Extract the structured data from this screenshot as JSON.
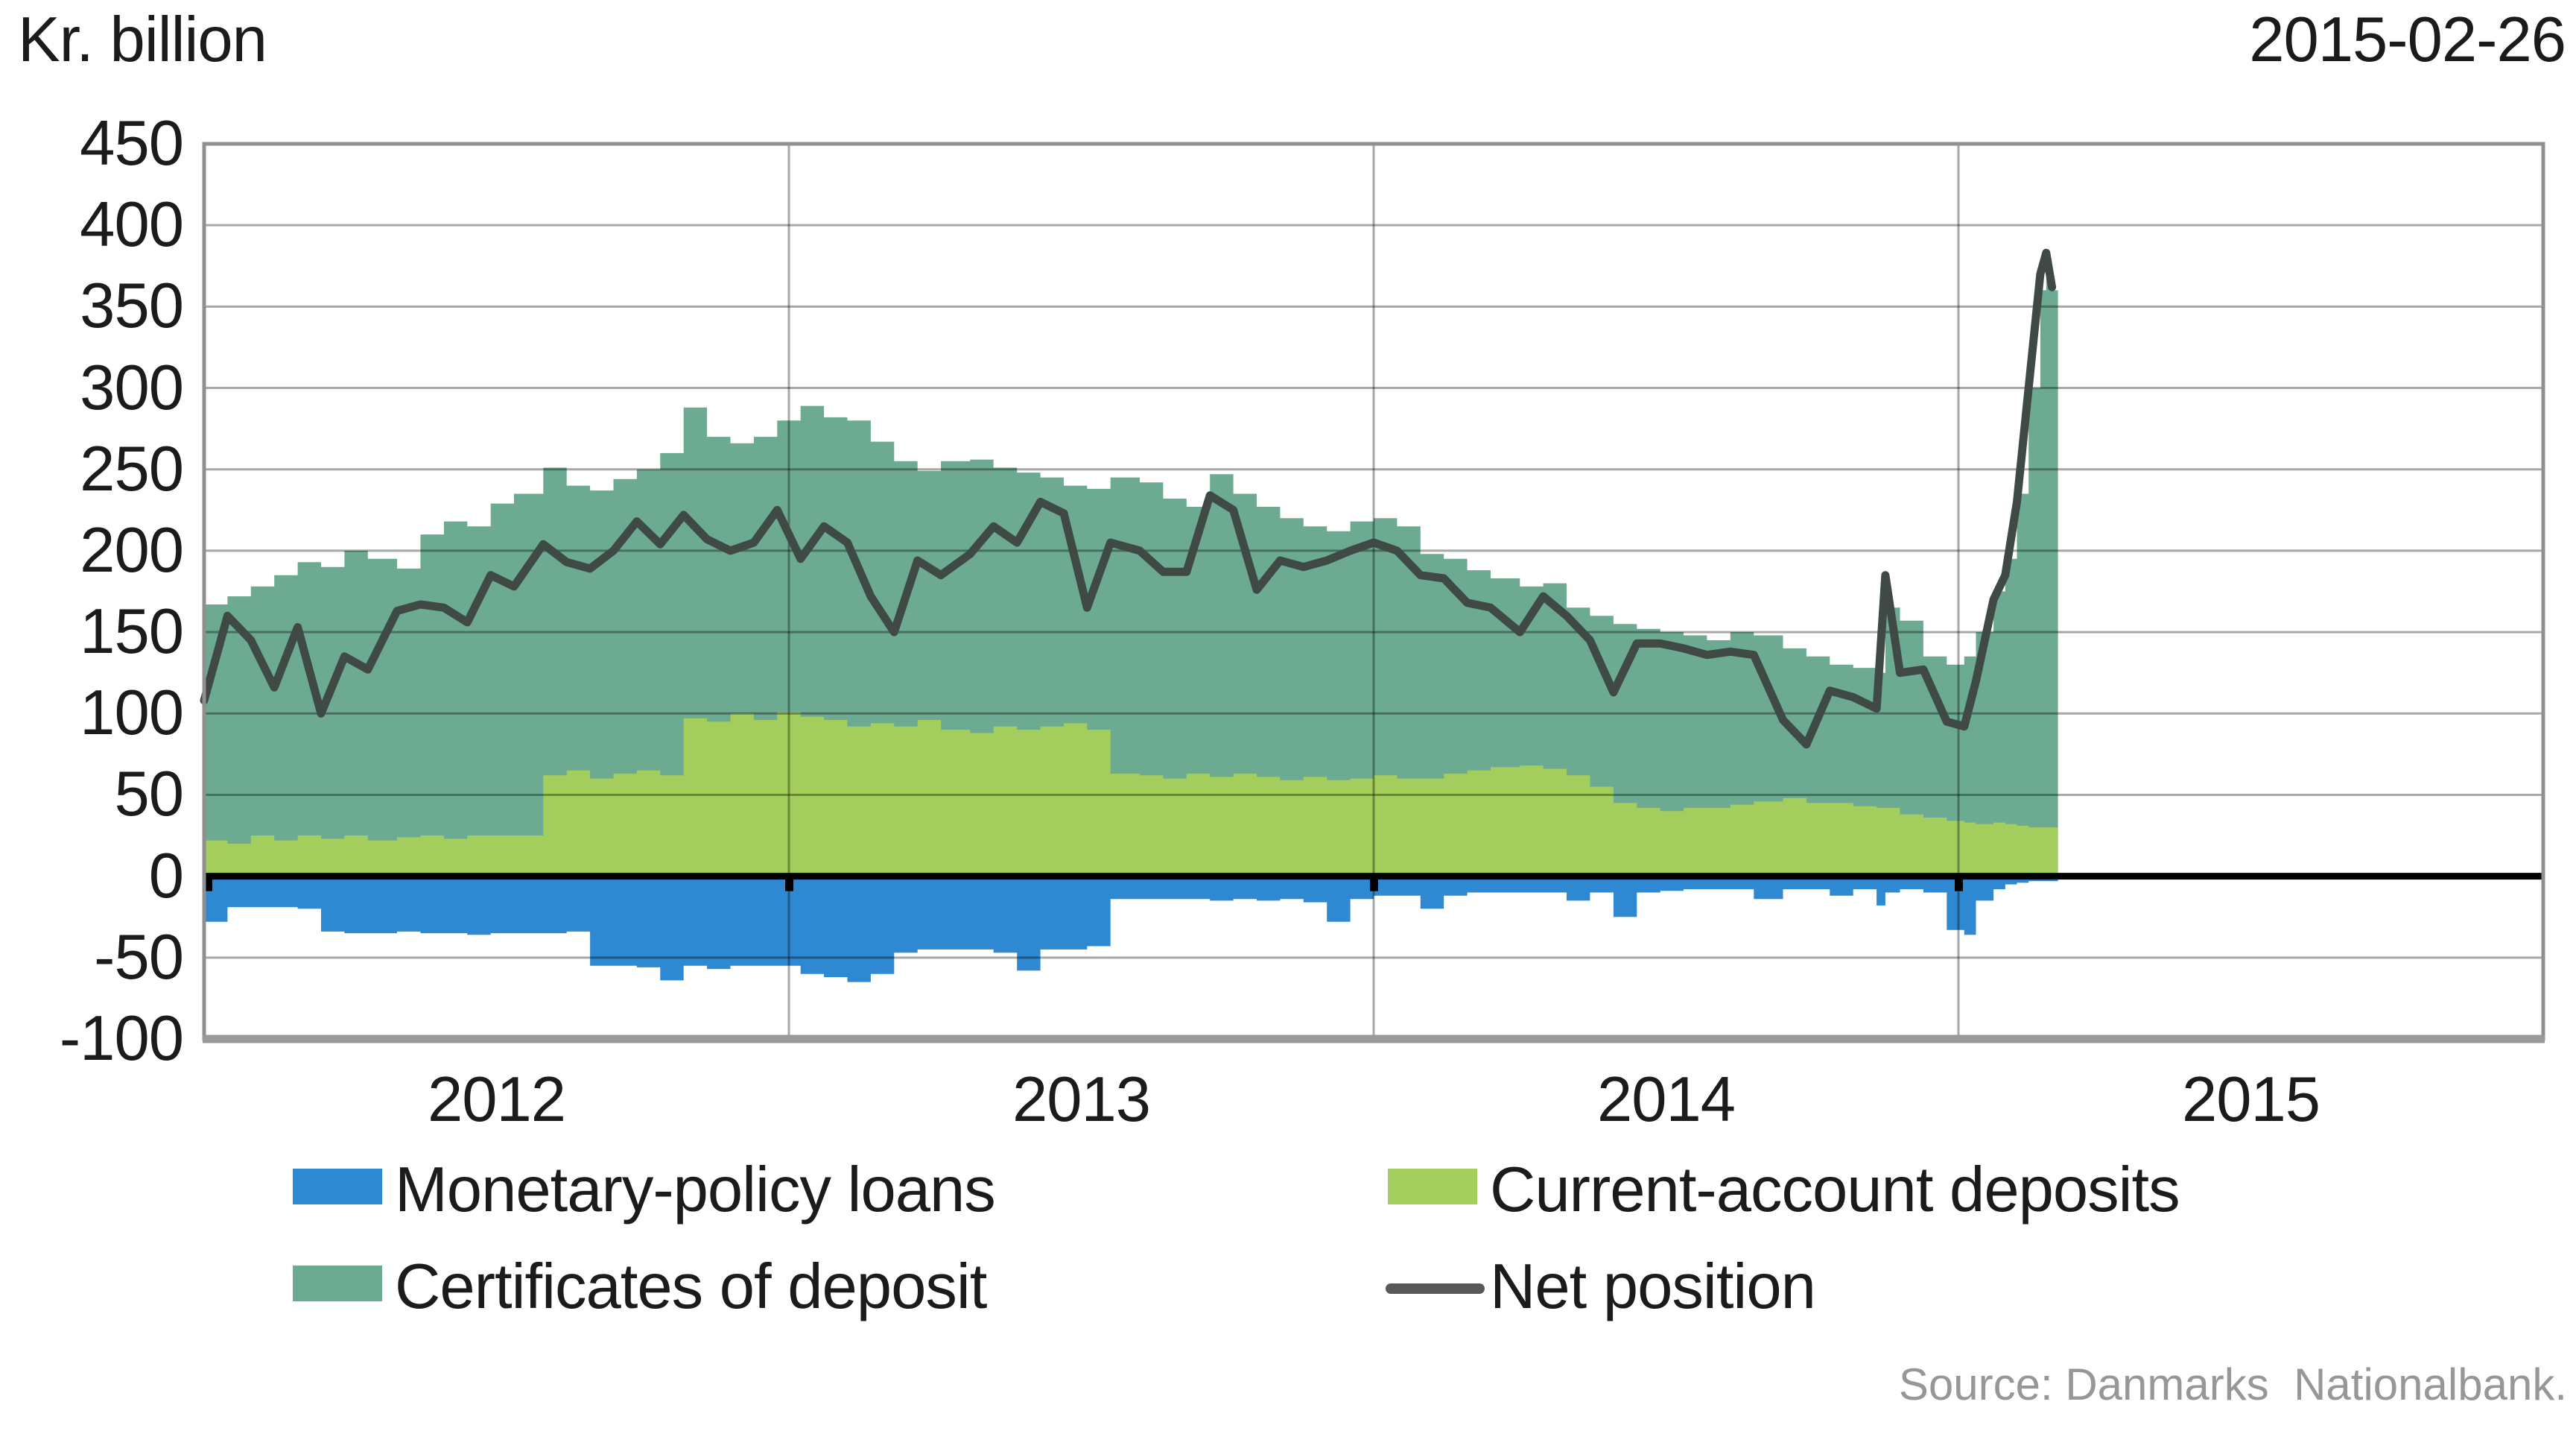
{
  "header": {
    "unit_label": "Kr. billion",
    "date": "2015-02-26"
  },
  "source": "Source: Danmarks  Nationalbank.",
  "y_axis": {
    "ticks": [
      450,
      400,
      350,
      300,
      250,
      200,
      150,
      100,
      50,
      0,
      -50,
      -100
    ]
  },
  "x_axis": {
    "labels": [
      "2012",
      "2013",
      "2014",
      "2015"
    ],
    "label_positions": [
      2012.5,
      2013.5,
      2014.5,
      2015.5
    ]
  },
  "legend": {
    "position": "below",
    "items": [
      {
        "label": "Monetary-policy loans",
        "swatch_color": "#2F88D2",
        "swatch_type": "rect"
      },
      {
        "label": "Current-account deposits",
        "swatch_color": "#A3CD5C",
        "swatch_type": "rect"
      },
      {
        "label": "Certificates of deposit",
        "swatch_color": "#6CAA91",
        "swatch_type": "rect"
      },
      {
        "label": "Net position",
        "swatch_color": "#58595B",
        "swatch_type": "line"
      }
    ]
  },
  "colors": {
    "background": "#FFFFFF",
    "monetary_policy_loans": "#2F88D2",
    "current_account_deposits": "#A3CD5C",
    "certificates_of_deposit": "#6CAA91",
    "net_position_line": "#3F4A47",
    "net_position_legend": "#58595B",
    "zero_line": "#000000",
    "gridline_rgba": "rgba(0,0,0,0.34)",
    "plot_border": "#8F8F8F",
    "text": "#1b1b1b",
    "source_text": "#979797"
  },
  "chart_data": {
    "type": "area",
    "title": "",
    "ylabel": "Kr. billion",
    "xlabel": "",
    "xlim": [
      2012,
      2016
    ],
    "ylim": [
      -100,
      450
    ],
    "y_tick_step": 50,
    "grid": true,
    "x_gridlines_years": [
      2013,
      2014,
      2015
    ],
    "zero_axis_tick_years": [
      2012,
      2013,
      2014,
      2015
    ],
    "x": [
      2012.0,
      2012.04,
      2012.08,
      2012.12,
      2012.16,
      2012.2,
      2012.24,
      2012.28,
      2012.33,
      2012.37,
      2012.41,
      2012.45,
      2012.49,
      2012.53,
      2012.58,
      2012.62,
      2012.66,
      2012.7,
      2012.74,
      2012.78,
      2012.82,
      2012.86,
      2012.9,
      2012.94,
      2012.98,
      2013.02,
      2013.06,
      2013.1,
      2013.14,
      2013.18,
      2013.22,
      2013.26,
      2013.31,
      2013.35,
      2013.39,
      2013.43,
      2013.47,
      2013.51,
      2013.55,
      2013.6,
      2013.64,
      2013.68,
      2013.72,
      2013.76,
      2013.8,
      2013.84,
      2013.88,
      2013.92,
      2013.96,
      2014.0,
      2014.04,
      2014.08,
      2014.12,
      2014.16,
      2014.2,
      2014.25,
      2014.29,
      2014.33,
      2014.37,
      2014.41,
      2014.45,
      2014.49,
      2014.53,
      2014.57,
      2014.61,
      2014.65,
      2014.7,
      2014.74,
      2014.78,
      2014.82,
      2014.86,
      2014.875,
      2014.9,
      2014.94,
      2014.98,
      2015.01,
      2015.03,
      2015.06,
      2015.08,
      2015.1,
      2015.12,
      2015.14,
      2015.15,
      2015.16
    ],
    "series": [
      {
        "name": "Monetary-policy loans",
        "type": "area",
        "stack": "none",
        "color": "#2F88D2",
        "values": [
          -28,
          -19,
          -19,
          -19,
          -20,
          -34,
          -35,
          -35,
          -34,
          -35,
          -35,
          -36,
          -35,
          -35,
          -35,
          -34,
          -55,
          -55,
          -56,
          -64,
          -55,
          -57,
          -55,
          -55,
          -55,
          -60,
          -62,
          -65,
          -60,
          -47,
          -45,
          -45,
          -45,
          -47,
          -58,
          -45,
          -45,
          -43,
          -14,
          -14,
          -14,
          -14,
          -15,
          -14,
          -15,
          -14,
          -16,
          -28,
          -14,
          -12,
          -12,
          -20,
          -12,
          -10,
          -10,
          -10,
          -10,
          -15,
          -10,
          -25,
          -10,
          -9,
          -8,
          -8,
          -8,
          -14,
          -8,
          -8,
          -12,
          -8,
          -18,
          -10,
          -8,
          -10,
          -33,
          -36,
          -15,
          -8,
          -5,
          -4,
          -3,
          -3,
          -3,
          -3
        ]
      },
      {
        "name": "Current-account deposits",
        "type": "area",
        "stack": "positive-base",
        "color": "#A3CD5C",
        "values": [
          22,
          20,
          25,
          22,
          25,
          23,
          25,
          22,
          24,
          25,
          23,
          25,
          25,
          25,
          62,
          65,
          60,
          63,
          65,
          62,
          97,
          95,
          100,
          96,
          101,
          98,
          96,
          92,
          94,
          92,
          96,
          90,
          88,
          92,
          90,
          92,
          94,
          90,
          63,
          62,
          60,
          63,
          61,
          63,
          61,
          59,
          61,
          59,
          60,
          62,
          60,
          60,
          63,
          65,
          67,
          68,
          66,
          62,
          55,
          45,
          42,
          40,
          42,
          42,
          44,
          46,
          48,
          45,
          45,
          43,
          42,
          42,
          38,
          36,
          34,
          33,
          32,
          33,
          32,
          31,
          30,
          30,
          30,
          30
        ]
      },
      {
        "name": "Certificates of deposit",
        "type": "area",
        "stack": "on Current-account deposits",
        "color": "#6CAA91",
        "values": [
          145,
          152,
          153,
          163,
          168,
          167,
          175,
          173,
          165,
          185,
          195,
          190,
          204,
          210,
          189,
          175,
          177,
          181,
          185,
          198,
          191,
          175,
          166,
          174,
          179,
          191,
          186,
          188,
          173,
          163,
          153,
          165,
          168,
          159,
          158,
          153,
          146,
          148,
          182,
          180,
          172,
          164,
          186,
          172,
          166,
          161,
          154,
          153,
          158,
          158,
          155,
          138,
          132,
          123,
          116,
          110,
          114,
          103,
          105,
          110,
          110,
          110,
          106,
          103,
          106,
          102,
          92,
          90,
          85,
          85,
          83,
          123,
          119,
          99,
          96,
          102,
          118,
          142,
          163,
          204,
          270,
          330,
          338,
          330
        ]
      },
      {
        "name": "Net position",
        "type": "line",
        "color": "#3F4A47",
        "values": [
          108,
          160,
          145,
          116,
          153,
          100,
          135,
          127,
          163,
          167,
          165,
          156,
          185,
          178,
          204,
          193,
          189,
          200,
          218,
          204,
          222,
          207,
          200,
          205,
          225,
          195,
          215,
          205,
          172,
          150,
          194,
          185,
          198,
          215,
          205,
          230,
          223,
          165,
          205,
          200,
          187,
          187,
          234,
          225,
          176,
          194,
          190,
          194,
          200,
          205,
          200,
          185,
          183,
          168,
          165,
          150,
          172,
          160,
          145,
          113,
          143,
          143,
          140,
          136,
          138,
          136,
          96,
          81,
          114,
          110,
          103,
          185,
          125,
          127,
          95,
          92,
          120,
          170,
          185,
          230,
          300,
          370,
          383,
          362
        ]
      }
    ]
  }
}
